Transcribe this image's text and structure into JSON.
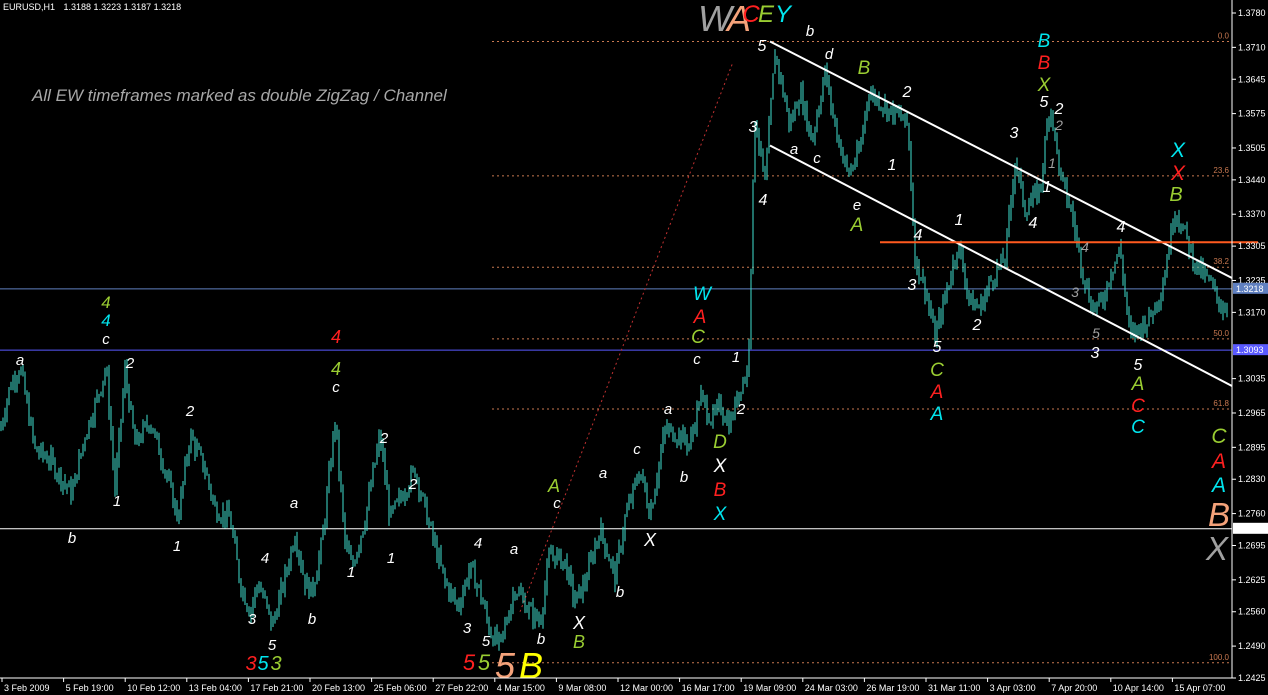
{
  "header": {
    "symbol": "EURUSD,H1",
    "ohlc": "1.3188 1.3223 1.3187 1.3218"
  },
  "note": "All EW timeframes marked as double ZigZag / Channel",
  "colors": {
    "bg": "#000000",
    "candle": "#40e0d0",
    "white": "#ffffff",
    "fib": "#c87850",
    "red": "#ff2020",
    "green": "#9acd32",
    "cyan": "#00e5ee",
    "salmon": "#f4a27a",
    "yellow": "#ffff00",
    "gray": "#a0a0a0",
    "orange": "#ff5a1f",
    "blue": "#5a5aff",
    "steel": "#6080c0"
  },
  "chart_data": {
    "type": "candlestick",
    "symbol": "EURUSD",
    "timeframe": "H1",
    "ylim": [
      1.2425,
      1.378
    ],
    "y_ticks": [
      "1.3780",
      "1.3710",
      "1.3645",
      "1.3575",
      "1.3505",
      "1.3440",
      "1.3370",
      "1.3305",
      "1.3235",
      "1.3170",
      "1.3035",
      "1.2965",
      "1.2895",
      "1.2830",
      "1.2760",
      "1.2695",
      "1.2625",
      "1.2560",
      "1.2490",
      "1.2425"
    ],
    "x_ticks": [
      "3 Feb 2009",
      "5 Feb 19:00",
      "10 Feb 12:00",
      "13 Feb 04:00",
      "17 Feb 21:00",
      "20 Feb 13:00",
      "25 Feb 06:00",
      "27 Feb 22:00",
      "4 Mar 15:00",
      "9 Mar 08:00",
      "12 Mar 00:00",
      "16 Mar 17:00",
      "19 Mar 09:00",
      "24 Mar 03:00",
      "26 Mar 19:00",
      "31 Mar 11:00",
      "3 Apr 03:00",
      "7 Apr 20:00",
      "10 Apr 14:00",
      "15 Apr 07:00"
    ],
    "price_path": [
      [
        0,
        1.293
      ],
      [
        10,
        1.302
      ],
      [
        20,
        1.306
      ],
      [
        35,
        1.289
      ],
      [
        50,
        1.287
      ],
      [
        62,
        1.283
      ],
      [
        72,
        1.28
      ],
      [
        85,
        1.292
      ],
      [
        98,
        1.3
      ],
      [
        106,
        1.306
      ],
      [
        115,
        1.281
      ],
      [
        125,
        1.305
      ],
      [
        135,
        1.29
      ],
      [
        150,
        1.295
      ],
      [
        165,
        1.285
      ],
      [
        178,
        1.275
      ],
      [
        190,
        1.292
      ],
      [
        205,
        1.285
      ],
      [
        215,
        1.277
      ],
      [
        230,
        1.275
      ],
      [
        240,
        1.262
      ],
      [
        250,
        1.256
      ],
      [
        258,
        1.262
      ],
      [
        265,
        1.258
      ],
      [
        272,
        1.253
      ],
      [
        285,
        1.263
      ],
      [
        295,
        1.272
      ],
      [
        305,
        1.262
      ],
      [
        312,
        1.26
      ],
      [
        322,
        1.27
      ],
      [
        335,
        1.295
      ],
      [
        345,
        1.27
      ],
      [
        352,
        1.265
      ],
      [
        365,
        1.275
      ],
      [
        380,
        1.292
      ],
      [
        390,
        1.275
      ],
      [
        405,
        1.281
      ],
      [
        415,
        1.285
      ],
      [
        430,
        1.273
      ],
      [
        445,
        1.262
      ],
      [
        458,
        1.257
      ],
      [
        470,
        1.265
      ],
      [
        480,
        1.26
      ],
      [
        490,
        1.252
      ],
      [
        500,
        1.249
      ],
      [
        515,
        1.261
      ],
      [
        530,
        1.256
      ],
      [
        540,
        1.254
      ],
      [
        550,
        1.268
      ],
      [
        565,
        1.266
      ],
      [
        575,
        1.258
      ],
      [
        585,
        1.262
      ],
      [
        600,
        1.273
      ],
      [
        615,
        1.263
      ],
      [
        625,
        1.275
      ],
      [
        640,
        1.285
      ],
      [
        650,
        1.276
      ],
      [
        665,
        1.293
      ],
      [
        680,
        1.292
      ],
      [
        690,
        1.29
      ],
      [
        700,
        1.3
      ],
      [
        712,
        1.295
      ],
      [
        720,
        1.298
      ],
      [
        730,
        1.294
      ],
      [
        740,
        1.302
      ],
      [
        748,
        1.305
      ],
      [
        755,
        1.357
      ],
      [
        765,
        1.343
      ],
      [
        775,
        1.37
      ],
      [
        790,
        1.355
      ],
      [
        800,
        1.362
      ],
      [
        812,
        1.352
      ],
      [
        825,
        1.366
      ],
      [
        835,
        1.355
      ],
      [
        848,
        1.345
      ],
      [
        860,
        1.35
      ],
      [
        868,
        1.362
      ],
      [
        880,
        1.36
      ],
      [
        890,
        1.358
      ],
      [
        900,
        1.357
      ],
      [
        908,
        1.355
      ],
      [
        915,
        1.328
      ],
      [
        925,
        1.322
      ],
      [
        935,
        1.312
      ],
      [
        945,
        1.32
      ],
      [
        958,
        1.331
      ],
      [
        970,
        1.319
      ],
      [
        980,
        1.318
      ],
      [
        992,
        1.324
      ],
      [
        1005,
        1.328
      ],
      [
        1015,
        1.348
      ],
      [
        1025,
        1.338
      ],
      [
        1040,
        1.342
      ],
      [
        1050,
        1.36
      ],
      [
        1060,
        1.345
      ],
      [
        1072,
        1.337
      ],
      [
        1082,
        1.326
      ],
      [
        1092,
        1.318
      ],
      [
        1102,
        1.319
      ],
      [
        1110,
        1.325
      ],
      [
        1120,
        1.33
      ],
      [
        1130,
        1.312
      ],
      [
        1140,
        1.314
      ],
      [
        1150,
        1.316
      ],
      [
        1162,
        1.322
      ],
      [
        1175,
        1.338
      ],
      [
        1185,
        1.333
      ],
      [
        1195,
        1.327
      ],
      [
        1210,
        1.323
      ],
      [
        1222,
        1.318
      ]
    ],
    "horizontal_lines": [
      {
        "price": 1.3218,
        "color": "steel",
        "label": "1.3218"
      },
      {
        "price": 1.3093,
        "color": "blue",
        "label": "1.3093"
      },
      {
        "price": 1.2729,
        "color": "white",
        "label": "1.2729"
      }
    ],
    "fib_levels": [
      {
        "label": "0.0",
        "price": 1.3722
      },
      {
        "label": "23.6",
        "price": 1.3448
      },
      {
        "label": "38.2",
        "price": 1.3262
      },
      {
        "label": "50.0",
        "price": 1.3116
      },
      {
        "label": "61.8",
        "price": 1.2973
      },
      {
        "label": "100.0",
        "price": 1.2456
      }
    ],
    "channel": {
      "upper": [
        [
          770,
          1.3722
        ],
        [
          1232,
          1.324
        ]
      ],
      "lower": [
        [
          770,
          1.351
        ],
        [
          1232,
          1.302
        ]
      ]
    },
    "resistance_line": {
      "price": 1.3313,
      "x_start": 880,
      "x_end": 1258
    },
    "dotted_trend": [
      [
        520,
        1.256
      ],
      [
        733,
        1.368
      ]
    ],
    "wave_labels": [
      {
        "t": "a",
        "x": 20,
        "y": 365,
        "c": "white",
        "s": 15
      },
      {
        "t": "4",
        "x": 106,
        "y": 308,
        "c": "green",
        "s": 17
      },
      {
        "t": "4",
        "x": 106,
        "y": 326,
        "c": "cyan",
        "s": 17
      },
      {
        "t": "c",
        "x": 106,
        "y": 344,
        "c": "white",
        "s": 15
      },
      {
        "t": "2",
        "x": 130,
        "y": 368,
        "c": "white",
        "s": 15
      },
      {
        "t": "b",
        "x": 72,
        "y": 543,
        "c": "white",
        "s": 15
      },
      {
        "t": "1",
        "x": 117,
        "y": 506,
        "c": "white",
        "s": 15
      },
      {
        "t": "1",
        "x": 177,
        "y": 551,
        "c": "white",
        "s": 15
      },
      {
        "t": "2",
        "x": 190,
        "y": 416,
        "c": "white",
        "s": 15
      },
      {
        "t": "a",
        "x": 294,
        "y": 508,
        "c": "white",
        "s": 15
      },
      {
        "t": "4",
        "x": 265,
        "y": 563,
        "c": "white",
        "s": 15
      },
      {
        "t": "3",
        "x": 252,
        "y": 624,
        "c": "white",
        "s": 15
      },
      {
        "t": "5",
        "x": 272,
        "y": 650,
        "c": "white",
        "s": 15
      },
      {
        "t": "b",
        "x": 312,
        "y": 624,
        "c": "white",
        "s": 15
      },
      {
        "t": "3",
        "x": 251,
        "y": 670,
        "c": "red",
        "s": 20
      },
      {
        "t": "5",
        "x": 263,
        "y": 670,
        "c": "cyan",
        "s": 20
      },
      {
        "t": "3",
        "x": 276,
        "y": 670,
        "c": "green",
        "s": 20
      },
      {
        "t": "4",
        "x": 336,
        "y": 343,
        "c": "red",
        "s": 18
      },
      {
        "t": "4",
        "x": 336,
        "y": 375,
        "c": "green",
        "s": 18
      },
      {
        "t": "c",
        "x": 336,
        "y": 392,
        "c": "white",
        "s": 15
      },
      {
        "t": "2",
        "x": 384,
        "y": 443,
        "c": "white",
        "s": 15
      },
      {
        "t": "1",
        "x": 351,
        "y": 577,
        "c": "white",
        "s": 15
      },
      {
        "t": "2",
        "x": 413,
        "y": 489,
        "c": "white",
        "s": 15
      },
      {
        "t": "1",
        "x": 391,
        "y": 563,
        "c": "white",
        "s": 15
      },
      {
        "t": "4",
        "x": 478,
        "y": 548,
        "c": "white",
        "s": 15
      },
      {
        "t": "a",
        "x": 514,
        "y": 554,
        "c": "white",
        "s": 15
      },
      {
        "t": "3",
        "x": 467,
        "y": 633,
        "c": "white",
        "s": 15
      },
      {
        "t": "5",
        "x": 486,
        "y": 646,
        "c": "white",
        "s": 15
      },
      {
        "t": "b",
        "x": 541,
        "y": 644,
        "c": "white",
        "s": 15
      },
      {
        "t": "5",
        "x": 469,
        "y": 670,
        "c": "red",
        "s": 22
      },
      {
        "t": "5",
        "x": 484,
        "y": 670,
        "c": "green",
        "s": 22
      },
      {
        "t": "5",
        "x": 505,
        "y": 678,
        "c": "salmon",
        "s": 36
      },
      {
        "t": "B",
        "x": 531,
        "y": 678,
        "c": "yellow",
        "s": 36
      },
      {
        "t": "A",
        "x": 554,
        "y": 492,
        "c": "green",
        "s": 18
      },
      {
        "t": "c",
        "x": 557,
        "y": 508,
        "c": "white",
        "s": 15
      },
      {
        "t": "a",
        "x": 603,
        "y": 478,
        "c": "white",
        "s": 15
      },
      {
        "t": "c",
        "x": 637,
        "y": 454,
        "c": "white",
        "s": 15
      },
      {
        "t": "X",
        "x": 579,
        "y": 629,
        "c": "white",
        "s": 18
      },
      {
        "t": "B",
        "x": 579,
        "y": 648,
        "c": "green",
        "s": 18
      },
      {
        "t": "b",
        "x": 620,
        "y": 597,
        "c": "white",
        "s": 15
      },
      {
        "t": "X",
        "x": 650,
        "y": 546,
        "c": "white",
        "s": 18
      },
      {
        "t": "a",
        "x": 668,
        "y": 414,
        "c": "white",
        "s": 15
      },
      {
        "t": "b",
        "x": 684,
        "y": 482,
        "c": "white",
        "s": 15
      },
      {
        "t": "W",
        "x": 702,
        "y": 300,
        "c": "cyan",
        "s": 19
      },
      {
        "t": "A",
        "x": 700,
        "y": 323,
        "c": "red",
        "s": 19
      },
      {
        "t": "C",
        "x": 698,
        "y": 343,
        "c": "green",
        "s": 19
      },
      {
        "t": "c",
        "x": 697,
        "y": 364,
        "c": "white",
        "s": 15
      },
      {
        "t": "1",
        "x": 736,
        "y": 362,
        "c": "white",
        "s": 15
      },
      {
        "t": "2",
        "x": 741,
        "y": 414,
        "c": "white",
        "s": 15
      },
      {
        "t": "D",
        "x": 720,
        "y": 448,
        "c": "green",
        "s": 19
      },
      {
        "t": "X",
        "x": 720,
        "y": 472,
        "c": "white",
        "s": 19
      },
      {
        "t": "B",
        "x": 720,
        "y": 496,
        "c": "red",
        "s": 19
      },
      {
        "t": "X",
        "x": 720,
        "y": 520,
        "c": "cyan",
        "s": 19
      },
      {
        "t": "W",
        "x": 715,
        "y": 31,
        "c": "gray",
        "s": 36
      },
      {
        "t": "A",
        "x": 739,
        "y": 31,
        "c": "salmon",
        "s": 36
      },
      {
        "t": "C",
        "x": 751,
        "y": 22,
        "c": "red",
        "s": 24
      },
      {
        "t": "E",
        "x": 766,
        "y": 22,
        "c": "green",
        "s": 24
      },
      {
        "t": "Y",
        "x": 783,
        "y": 22,
        "c": "cyan",
        "s": 24
      },
      {
        "t": "5",
        "x": 762,
        "y": 51,
        "c": "white",
        "s": 16
      },
      {
        "t": "b",
        "x": 810,
        "y": 36,
        "c": "white",
        "s": 15
      },
      {
        "t": "d",
        "x": 829,
        "y": 59,
        "c": "white",
        "s": 15
      },
      {
        "t": "3",
        "x": 753,
        "y": 132,
        "c": "white",
        "s": 16
      },
      {
        "t": "4",
        "x": 763,
        "y": 205,
        "c": "white",
        "s": 16
      },
      {
        "t": "a",
        "x": 794,
        "y": 154,
        "c": "white",
        "s": 15
      },
      {
        "t": "c",
        "x": 817,
        "y": 163,
        "c": "white",
        "s": 15
      },
      {
        "t": "B",
        "x": 864,
        "y": 74,
        "c": "green",
        "s": 19
      },
      {
        "t": "2",
        "x": 907,
        "y": 97,
        "c": "white",
        "s": 16
      },
      {
        "t": "1",
        "x": 892,
        "y": 170,
        "c": "white",
        "s": 16
      },
      {
        "t": "e",
        "x": 857,
        "y": 210,
        "c": "white",
        "s": 15
      },
      {
        "t": "A",
        "x": 857,
        "y": 231,
        "c": "green",
        "s": 19
      },
      {
        "t": "4",
        "x": 918,
        "y": 240,
        "c": "white",
        "s": 16
      },
      {
        "t": "3",
        "x": 912,
        "y": 290,
        "c": "white",
        "s": 16
      },
      {
        "t": "1",
        "x": 959,
        "y": 225,
        "c": "white",
        "s": 16
      },
      {
        "t": "2",
        "x": 977,
        "y": 330,
        "c": "white",
        "s": 16
      },
      {
        "t": "5",
        "x": 937,
        "y": 352,
        "c": "white",
        "s": 16
      },
      {
        "t": "C",
        "x": 937,
        "y": 376,
        "c": "green",
        "s": 19
      },
      {
        "t": "A",
        "x": 937,
        "y": 398,
        "c": "red",
        "s": 19
      },
      {
        "t": "A",
        "x": 937,
        "y": 420,
        "c": "cyan",
        "s": 19
      },
      {
        "t": "B",
        "x": 1044,
        "y": 47,
        "c": "cyan",
        "s": 19
      },
      {
        "t": "B",
        "x": 1044,
        "y": 69,
        "c": "red",
        "s": 19
      },
      {
        "t": "X",
        "x": 1044,
        "y": 91,
        "c": "green",
        "s": 19
      },
      {
        "t": "5",
        "x": 1044,
        "y": 107,
        "c": "white",
        "s": 16
      },
      {
        "t": "2",
        "x": 1059,
        "y": 114,
        "c": "white",
        "s": 16
      },
      {
        "t": "2",
        "x": 1059,
        "y": 130,
        "c": "gray",
        "s": 14
      },
      {
        "t": "3",
        "x": 1014,
        "y": 138,
        "c": "white",
        "s": 16
      },
      {
        "t": "1",
        "x": 1052,
        "y": 168,
        "c": "gray",
        "s": 14
      },
      {
        "t": "1",
        "x": 1047,
        "y": 192,
        "c": "white",
        "s": 16
      },
      {
        "t": "4",
        "x": 1033,
        "y": 228,
        "c": "white",
        "s": 16
      },
      {
        "t": "4",
        "x": 1085,
        "y": 252,
        "c": "gray",
        "s": 14
      },
      {
        "t": "3",
        "x": 1075,
        "y": 297,
        "c": "gray",
        "s": 14
      },
      {
        "t": "4",
        "x": 1121,
        "y": 232,
        "c": "white",
        "s": 16
      },
      {
        "t": "5",
        "x": 1096,
        "y": 338,
        "c": "gray",
        "s": 14
      },
      {
        "t": "3",
        "x": 1095,
        "y": 358,
        "c": "white",
        "s": 16
      },
      {
        "t": "5",
        "x": 1138,
        "y": 370,
        "c": "white",
        "s": 16
      },
      {
        "t": "A",
        "x": 1138,
        "y": 390,
        "c": "green",
        "s": 19
      },
      {
        "t": "C",
        "x": 1138,
        "y": 412,
        "c": "red",
        "s": 19
      },
      {
        "t": "C",
        "x": 1138,
        "y": 433,
        "c": "cyan",
        "s": 19
      },
      {
        "t": "X",
        "x": 1178,
        "y": 157,
        "c": "cyan",
        "s": 21
      },
      {
        "t": "X",
        "x": 1178,
        "y": 180,
        "c": "red",
        "s": 21
      },
      {
        "t": "B",
        "x": 1176,
        "y": 201,
        "c": "green",
        "s": 20
      },
      {
        "t": "C",
        "x": 1219,
        "y": 443,
        "c": "green",
        "s": 21
      },
      {
        "t": "A",
        "x": 1219,
        "y": 468,
        "c": "red",
        "s": 21
      },
      {
        "t": "A",
        "x": 1219,
        "y": 492,
        "c": "cyan",
        "s": 21
      },
      {
        "t": "B",
        "x": 1219,
        "y": 526,
        "c": "salmon",
        "s": 33
      },
      {
        "t": "X",
        "x": 1217,
        "y": 560,
        "c": "gray",
        "s": 33
      }
    ]
  }
}
